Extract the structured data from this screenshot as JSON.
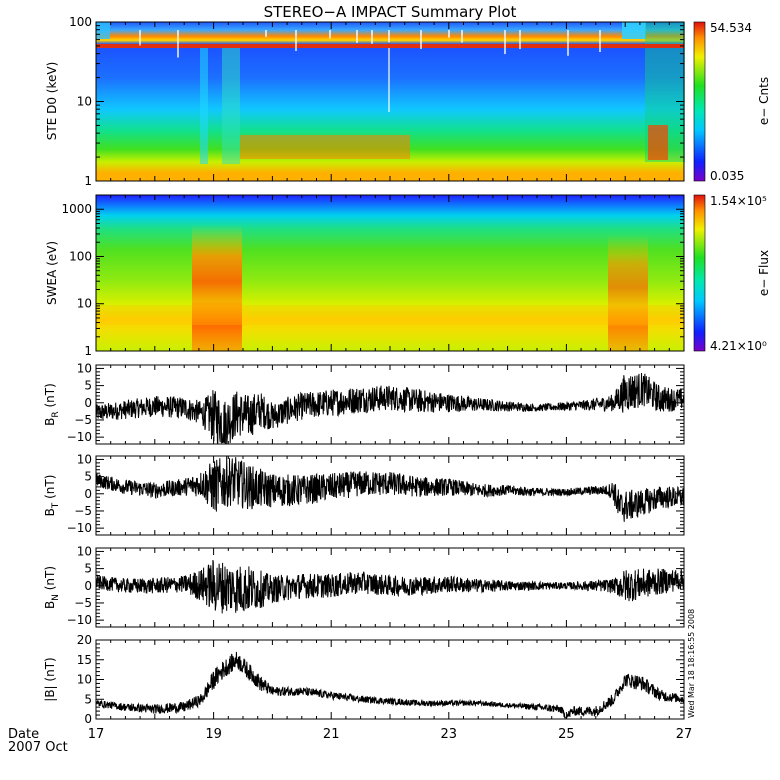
{
  "title": "STEREO−A IMPACT Summary Plot",
  "footer": {
    "date_label": "Date",
    "month_label": "2007 Oct"
  },
  "stamp": "Wed Mar 18 18:16:55 2008",
  "colors": {
    "frame": "#000000",
    "trace": "#000000"
  },
  "chart_data": [
    {
      "type": "heatmap",
      "ylabel": "STE D0 (keV)",
      "yscale": "log",
      "ylim": [
        1,
        100
      ],
      "yticks": [
        {
          "value": 1,
          "label": "1"
        },
        {
          "value": 10,
          "label": "10"
        },
        {
          "value": 100,
          "label": "100"
        }
      ],
      "colorbar": {
        "label": "e− Cnts",
        "max_label": "54.534",
        "min_label": "0.035"
      }
    },
    {
      "type": "heatmap",
      "ylabel": "SWEA (eV)",
      "yscale": "log",
      "ylim": [
        1,
        2000
      ],
      "yticks": [
        {
          "value": 1,
          "label": "1"
        },
        {
          "value": 10,
          "label": "10"
        },
        {
          "value": 100,
          "label": "100"
        },
        {
          "value": 1000,
          "label": "1000"
        }
      ],
      "colorbar": {
        "label": "e− Flux",
        "max_label": "1.54×10⁵",
        "min_label": "4.21×10⁰"
      }
    },
    {
      "type": "line",
      "ylabel_main": "B",
      "ylabel_sub": "R",
      "ylabel_unit": " (nT)",
      "ylim": [
        -12,
        11
      ],
      "yticks": [
        -10,
        -5,
        0,
        5,
        10
      ],
      "profile": [
        [
          17,
          -3
        ],
        [
          17.5,
          -2
        ],
        [
          18,
          -1
        ],
        [
          18.5,
          -1.5
        ],
        [
          18.8,
          -3
        ],
        [
          19,
          -4
        ],
        [
          19.2,
          -6
        ],
        [
          19.4,
          -3
        ],
        [
          19.6,
          -4
        ],
        [
          19.8,
          -2
        ],
        [
          20,
          -4
        ],
        [
          20.3,
          -2
        ],
        [
          20.5,
          -1
        ],
        [
          21,
          0
        ],
        [
          21.5,
          1
        ],
        [
          22,
          1.5
        ],
        [
          22.5,
          0.5
        ],
        [
          23,
          0
        ],
        [
          23.5,
          -0.5
        ],
        [
          24,
          -1
        ],
        [
          24.5,
          -1.5
        ],
        [
          25,
          -1
        ],
        [
          25.5,
          -0.5
        ],
        [
          25.8,
          0
        ],
        [
          26,
          3
        ],
        [
          26.3,
          4
        ],
        [
          26.6,
          1
        ],
        [
          27,
          1
        ]
      ],
      "noise": [
        [
          17,
          2.5
        ],
        [
          18.8,
          3.5
        ],
        [
          19,
          8
        ],
        [
          19.7,
          6
        ],
        [
          20,
          4
        ],
        [
          21.5,
          4
        ],
        [
          22.5,
          3.5
        ],
        [
          23.5,
          2
        ],
        [
          24.5,
          1
        ],
        [
          25.3,
          1.5
        ],
        [
          25.8,
          2.5
        ],
        [
          26,
          6
        ],
        [
          26.6,
          4
        ],
        [
          27,
          3
        ]
      ]
    },
    {
      "type": "line",
      "ylabel_main": "B",
      "ylabel_sub": "T",
      "ylabel_unit": " (nT)",
      "ylim": [
        -12,
        11
      ],
      "yticks": [
        -10,
        -5,
        0,
        5,
        10
      ],
      "profile": [
        [
          17,
          4
        ],
        [
          17.5,
          2
        ],
        [
          18,
          1
        ],
        [
          18.5,
          2
        ],
        [
          18.8,
          3
        ],
        [
          19,
          2
        ],
        [
          19.3,
          4
        ],
        [
          19.6,
          2
        ],
        [
          20,
          1
        ],
        [
          20.5,
          1
        ],
        [
          21,
          2
        ],
        [
          21.5,
          3
        ],
        [
          22,
          3
        ],
        [
          22.5,
          2
        ],
        [
          23,
          2
        ],
        [
          23.5,
          1
        ],
        [
          24,
          1
        ],
        [
          24.5,
          0.5
        ],
        [
          25,
          0.5
        ],
        [
          25.5,
          1
        ],
        [
          25.8,
          1
        ],
        [
          25.9,
          -4
        ],
        [
          26.2,
          -3
        ],
        [
          26.6,
          -1
        ],
        [
          27,
          -1
        ]
      ],
      "noise": [
        [
          17,
          2
        ],
        [
          18.5,
          2.5
        ],
        [
          18.8,
          4
        ],
        [
          19,
          8
        ],
        [
          19.5,
          7
        ],
        [
          20,
          5
        ],
        [
          21,
          4
        ],
        [
          22,
          3.5
        ],
        [
          23,
          2.5
        ],
        [
          24,
          1.5
        ],
        [
          25,
          1
        ],
        [
          25.7,
          1.5
        ],
        [
          25.9,
          5
        ],
        [
          26.5,
          3.5
        ],
        [
          27,
          3
        ]
      ]
    },
    {
      "type": "line",
      "ylabel_main": "B",
      "ylabel_sub": "N",
      "ylabel_unit": " (nT)",
      "ylim": [
        -12,
        11
      ],
      "yticks": [
        -10,
        -5,
        0,
        5,
        10
      ],
      "profile": [
        [
          17,
          1
        ],
        [
          17.5,
          0
        ],
        [
          18,
          0
        ],
        [
          18.5,
          0.5
        ],
        [
          19,
          0
        ],
        [
          19.5,
          -1
        ],
        [
          20,
          -1
        ],
        [
          20.5,
          0
        ],
        [
          21,
          0
        ],
        [
          21.5,
          1
        ],
        [
          22,
          0
        ],
        [
          22.5,
          0
        ],
        [
          23,
          0.5
        ],
        [
          23.5,
          0
        ],
        [
          24,
          0
        ],
        [
          24.5,
          0
        ],
        [
          25,
          0
        ],
        [
          25.5,
          0
        ],
        [
          26,
          0
        ],
        [
          26.5,
          1
        ],
        [
          27,
          2
        ]
      ],
      "noise": [
        [
          17,
          2
        ],
        [
          18.5,
          2.5
        ],
        [
          18.8,
          5
        ],
        [
          19,
          8
        ],
        [
          19.6,
          7
        ],
        [
          20,
          4
        ],
        [
          21,
          3.5
        ],
        [
          22,
          3
        ],
        [
          23,
          2.5
        ],
        [
          24,
          1.5
        ],
        [
          25,
          1
        ],
        [
          25.8,
          2
        ],
        [
          26,
          5
        ],
        [
          26.5,
          4
        ],
        [
          27,
          3
        ]
      ]
    },
    {
      "type": "line",
      "ylabel_main": "|B|",
      "ylabel_sub": "",
      "ylabel_unit": " (nT)",
      "ylim": [
        0,
        20
      ],
      "yticks": [
        0,
        5,
        10,
        15,
        20
      ],
      "profile": [
        [
          17,
          4
        ],
        [
          17.5,
          3
        ],
        [
          18,
          2.5
        ],
        [
          18.5,
          3
        ],
        [
          18.8,
          5
        ],
        [
          19,
          10
        ],
        [
          19.2,
          13
        ],
        [
          19.4,
          15
        ],
        [
          19.6,
          12
        ],
        [
          19.8,
          9
        ],
        [
          20,
          7
        ],
        [
          20.5,
          7
        ],
        [
          21,
          6
        ],
        [
          21.5,
          5
        ],
        [
          22,
          4.5
        ],
        [
          22.5,
          4
        ],
        [
          23,
          4
        ],
        [
          23.5,
          4
        ],
        [
          24,
          3.5
        ],
        [
          24.5,
          3
        ],
        [
          24.9,
          2.5
        ],
        [
          25,
          0.5
        ],
        [
          25.1,
          2
        ],
        [
          25.5,
          2
        ],
        [
          25.8,
          5
        ],
        [
          26,
          10
        ],
        [
          26.3,
          9
        ],
        [
          26.6,
          6
        ],
        [
          27,
          5
        ]
      ],
      "noise": [
        [
          17,
          0.8
        ],
        [
          18.8,
          1.5
        ],
        [
          19,
          2.5
        ],
        [
          19.8,
          2
        ],
        [
          20,
          1.2
        ],
        [
          22,
          0.8
        ],
        [
          24,
          0.6
        ],
        [
          25.8,
          1.5
        ],
        [
          26.2,
          2
        ],
        [
          27,
          1
        ]
      ],
      "floor": 0.3
    }
  ],
  "x_axis": {
    "xlim": [
      17,
      27
    ],
    "major": [
      17,
      19,
      21,
      23,
      25,
      27
    ],
    "labels": [
      "17",
      "19",
      "21",
      "23",
      "25",
      "27"
    ]
  }
}
